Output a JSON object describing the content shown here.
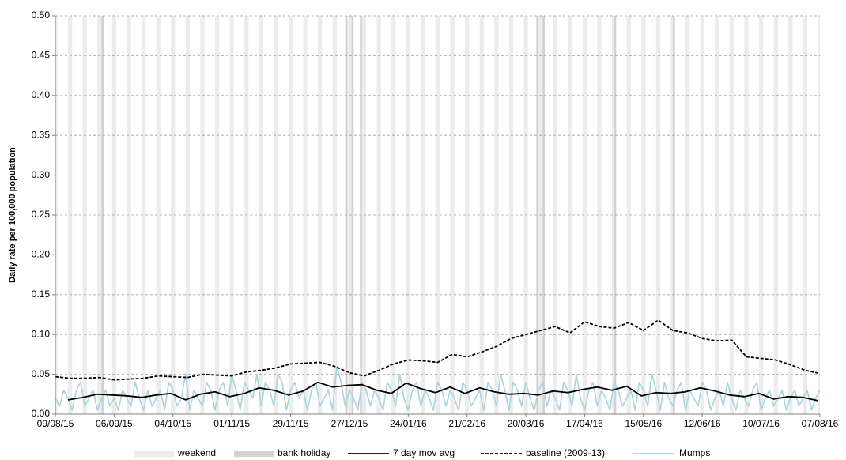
{
  "chart_data": {
    "type": "line",
    "y_label": "Daily rate per 100,000 population",
    "xlim": [
      0,
      364
    ],
    "xticks": [
      {
        "value": 0,
        "label": "09/08/15"
      },
      {
        "value": 28,
        "label": "06/09/15"
      },
      {
        "value": 56,
        "label": "04/10/15"
      },
      {
        "value": 84,
        "label": "01/11/15"
      },
      {
        "value": 112,
        "label": "29/11/15"
      },
      {
        "value": 140,
        "label": "27/12/15"
      },
      {
        "value": 168,
        "label": "24/01/16"
      },
      {
        "value": 196,
        "label": "21/02/16"
      },
      {
        "value": 224,
        "label": "20/03/16"
      },
      {
        "value": 252,
        "label": "17/04/16"
      },
      {
        "value": 280,
        "label": "15/05/16"
      },
      {
        "value": 308,
        "label": "12/06/16"
      },
      {
        "value": 336,
        "label": "10/07/16"
      },
      {
        "value": 364,
        "label": "07/08/16"
      }
    ],
    "ylim": [
      0,
      0.5
    ],
    "yticks": [
      {
        "value": 0,
        "label": "0.00"
      },
      {
        "value": 0.05,
        "label": "0.05"
      },
      {
        "value": 0.1,
        "label": "0.10"
      },
      {
        "value": 0.15,
        "label": "0.15"
      },
      {
        "value": 0.2,
        "label": "0.20"
      },
      {
        "value": 0.25,
        "label": "0.25"
      },
      {
        "value": 0.3,
        "label": "0.30"
      },
      {
        "value": 0.35,
        "label": "0.35"
      },
      {
        "value": 0.4,
        "label": "0.40"
      },
      {
        "value": 0.45,
        "label": "0.45"
      },
      {
        "value": 0.5,
        "label": "0.50"
      }
    ],
    "grid": true,
    "shading": [
      {
        "name": "weekend",
        "color": "#ececec",
        "x": [
          -1,
          6,
          13,
          20,
          27,
          34,
          41,
          48,
          55,
          62,
          69,
          76,
          83,
          90,
          97,
          104,
          111,
          118,
          125,
          132,
          139,
          146,
          153,
          160,
          167,
          174,
          181,
          188,
          195,
          202,
          209,
          216,
          223,
          230,
          237,
          244,
          251,
          258,
          265,
          272,
          279,
          286,
          293,
          300,
          307,
          314,
          321,
          328,
          335,
          342,
          349,
          356,
          363
        ]
      },
      {
        "name": "bank holiday",
        "color": "#d2d2d2",
        "x": [
          22,
          138,
          141,
          145,
          229,
          232,
          266,
          294
        ]
      }
    ],
    "series": [
      {
        "name": "7 day mov avg",
        "color": "#000000",
        "dashed": false,
        "x": [
          6,
          13,
          20,
          27,
          34,
          41,
          48,
          55,
          62,
          69,
          76,
          83,
          90,
          97,
          104,
          111,
          118,
          125,
          132,
          139,
          146,
          153,
          160,
          167,
          174,
          181,
          188,
          195,
          202,
          209,
          216,
          223,
          230,
          237,
          244,
          251,
          258,
          265,
          272,
          279,
          286,
          293,
          300,
          307,
          314,
          321,
          328,
          335,
          342,
          349,
          356,
          363
        ],
        "values": [
          0.018,
          0.021,
          0.025,
          0.024,
          0.023,
          0.021,
          0.024,
          0.026,
          0.018,
          0.025,
          0.028,
          0.022,
          0.026,
          0.033,
          0.03,
          0.024,
          0.029,
          0.04,
          0.034,
          0.036,
          0.037,
          0.03,
          0.026,
          0.039,
          0.032,
          0.027,
          0.034,
          0.026,
          0.033,
          0.028,
          0.025,
          0.026,
          0.024,
          0.029,
          0.027,
          0.031,
          0.034,
          0.03,
          0.035,
          0.023,
          0.027,
          0.026,
          0.028,
          0.033,
          0.029,
          0.024,
          0.022,
          0.026,
          0.019,
          0.022,
          0.021,
          0.017
        ]
      },
      {
        "name": "baseline (2009-13)",
        "color": "#000000",
        "dashed": true,
        "x": [
          0,
          7,
          14,
          21,
          28,
          35,
          42,
          49,
          56,
          63,
          70,
          77,
          84,
          91,
          98,
          105,
          112,
          119,
          126,
          133,
          140,
          147,
          154,
          161,
          168,
          175,
          182,
          189,
          196,
          203,
          210,
          217,
          224,
          231,
          238,
          245,
          252,
          259,
          266,
          273,
          280,
          287,
          294,
          301,
          308,
          315,
          322,
          329,
          336,
          343,
          350,
          357,
          364
        ],
        "values": [
          0.047,
          0.045,
          0.045,
          0.046,
          0.043,
          0.044,
          0.045,
          0.048,
          0.047,
          0.046,
          0.05,
          0.049,
          0.048,
          0.053,
          0.055,
          0.058,
          0.063,
          0.064,
          0.065,
          0.06,
          0.052,
          0.048,
          0.055,
          0.063,
          0.068,
          0.067,
          0.065,
          0.075,
          0.072,
          0.078,
          0.085,
          0.095,
          0.1,
          0.105,
          0.11,
          0.102,
          0.116,
          0.11,
          0.108,
          0.115,
          0.105,
          0.118,
          0.105,
          0.102,
          0.095,
          0.092,
          0.093,
          0.072,
          0.07,
          0.068,
          0.062,
          0.055,
          0.051
        ]
      },
      {
        "name": "Mumps",
        "color": "#a9d3e0",
        "dashed": false,
        "x": [
          0,
          2,
          4,
          6,
          8,
          10,
          12,
          14,
          16,
          18,
          20,
          22,
          24,
          26,
          28,
          30,
          32,
          34,
          36,
          38,
          40,
          42,
          44,
          46,
          48,
          50,
          52,
          54,
          56,
          58,
          60,
          62,
          64,
          66,
          68,
          70,
          72,
          74,
          76,
          78,
          80,
          82,
          84,
          86,
          88,
          90,
          92,
          94,
          96,
          98,
          100,
          102,
          104,
          106,
          108,
          110,
          112,
          114,
          116,
          118,
          120,
          122,
          124,
          126,
          128,
          130,
          132,
          134,
          136,
          138,
          140,
          142,
          144,
          146,
          148,
          150,
          152,
          154,
          156,
          158,
          160,
          162,
          164,
          166,
          168,
          170,
          172,
          174,
          176,
          178,
          180,
          182,
          184,
          186,
          188,
          190,
          192,
          194,
          196,
          198,
          200,
          202,
          204,
          206,
          208,
          210,
          212,
          214,
          216,
          218,
          220,
          222,
          224,
          226,
          228,
          230,
          232,
          234,
          236,
          238,
          240,
          242,
          244,
          246,
          248,
          250,
          252,
          254,
          256,
          258,
          260,
          262,
          264,
          266,
          268,
          270,
          272,
          274,
          276,
          278,
          280,
          282,
          284,
          286,
          288,
          290,
          292,
          294,
          296,
          298,
          300,
          302,
          304,
          306,
          308,
          310,
          312,
          314,
          316,
          318,
          320,
          322,
          324,
          326,
          328,
          330,
          332,
          334,
          336,
          338,
          340,
          342,
          344,
          346,
          348,
          350,
          352,
          354,
          356,
          358,
          360,
          362,
          364
        ],
        "values": [
          0.02,
          0.01,
          0.03,
          0.02,
          0.005,
          0.03,
          0.04,
          0.01,
          0.02,
          0.03,
          0.005,
          0.02,
          0.03,
          0.01,
          0.02,
          0.005,
          0.03,
          0.02,
          0.01,
          0.04,
          0.02,
          0.005,
          0.03,
          0.01,
          0.02,
          0.03,
          0.005,
          0.04,
          0.03,
          0.01,
          0.02,
          0.05,
          0.005,
          0.03,
          0.02,
          0.01,
          0.04,
          0.03,
          0.005,
          0.03,
          0.04,
          0.01,
          0.05,
          0.03,
          0.005,
          0.04,
          0.03,
          0.02,
          0.05,
          0.01,
          0.04,
          0.03,
          0.01,
          0.05,
          0.04,
          0.005,
          0.03,
          0.04,
          0.02,
          0.03,
          0.005,
          0.03,
          0.04,
          0.01,
          0.02,
          0.03,
          0.005,
          0.06,
          0.04,
          0.01,
          0.03,
          0.02,
          0.005,
          0.04,
          0.03,
          0.01,
          0.03,
          0.02,
          0.005,
          0.04,
          0.03,
          0.01,
          0.05,
          0.02,
          0.005,
          0.03,
          0.04,
          0.01,
          0.03,
          0.02,
          0.005,
          0.04,
          0.03,
          0.01,
          0.03,
          0.02,
          0.005,
          0.04,
          0.03,
          0.01,
          0.02,
          0.03,
          0.005,
          0.04,
          0.03,
          0.01,
          0.05,
          0.03,
          0.005,
          0.04,
          0.03,
          0.01,
          0.04,
          0.02,
          0.005,
          0.03,
          0.04,
          0.01,
          0.03,
          0.02,
          0.005,
          0.04,
          0.03,
          0.01,
          0.05,
          0.02,
          0.005,
          0.03,
          0.04,
          0.01,
          0.03,
          0.02,
          0.005,
          0.04,
          0.03,
          0.01,
          0.02,
          0.03,
          0.005,
          0.04,
          0.03,
          0.01,
          0.05,
          0.03,
          0.005,
          0.04,
          0.02,
          0.01,
          0.03,
          0.04,
          0.005,
          0.03,
          0.02,
          0.01,
          0.04,
          0.03,
          0.005,
          0.02,
          0.03,
          0.01,
          0.04,
          0.02,
          0.005,
          0.03,
          0.02,
          0.01,
          0.03,
          0.04,
          0.005,
          0.02,
          0.03,
          0.01,
          0.02,
          0.03,
          0.005,
          0.02,
          0.03,
          0.01,
          0.02,
          0.03,
          0.005,
          0.02,
          0.03
        ]
      }
    ]
  }
}
